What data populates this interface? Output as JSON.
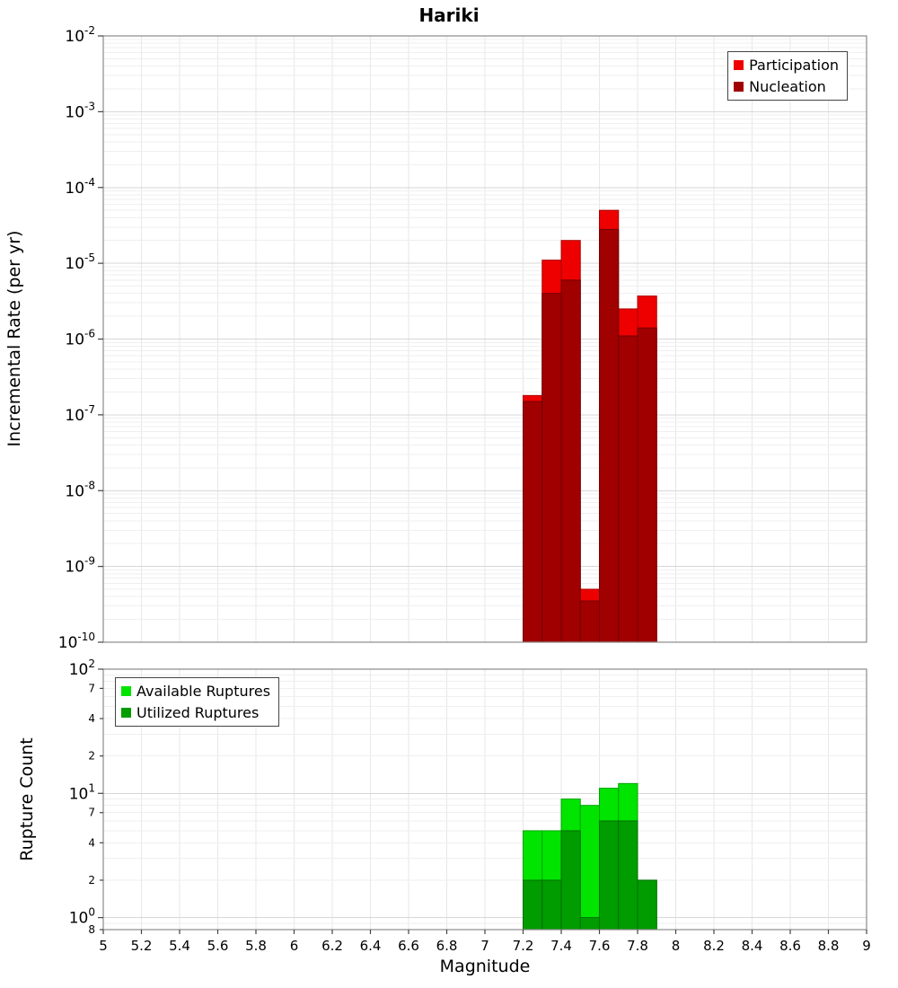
{
  "chart_data": [
    {
      "type": "bar",
      "title": "Hariki",
      "ylabel": "Incremental Rate (per yr)",
      "xlabel": "",
      "yscale": "log",
      "grid": true,
      "ylim": [
        1e-10,
        0.01
      ],
      "xlim": [
        5,
        9
      ],
      "bar_width": 0.1,
      "legend_position": "top-right",
      "x": [
        7.25,
        7.35,
        7.45,
        7.55,
        7.65,
        7.75,
        7.85
      ],
      "series": [
        {
          "name": "Participation",
          "color": "#ee0000",
          "values": [
            1.8e-07,
            1.1e-05,
            2e-05,
            5e-10,
            5e-05,
            2.5e-06,
            3.7e-06
          ]
        },
        {
          "name": "Nucleation",
          "color": "#a00000",
          "values": [
            1.5e-07,
            4e-06,
            6e-06,
            3.5e-10,
            2.8e-05,
            1.1e-06,
            1.4e-06
          ]
        }
      ],
      "yticks": [
        {
          "v": 0.01,
          "exp": "-2"
        },
        {
          "v": 0.001,
          "exp": "-3"
        },
        {
          "v": 0.0001,
          "exp": "-4"
        },
        {
          "v": 1e-05,
          "exp": "-5"
        },
        {
          "v": 1e-06,
          "exp": "-6"
        },
        {
          "v": 1e-07,
          "exp": "-7"
        },
        {
          "v": 1e-08,
          "exp": "-8"
        },
        {
          "v": 1e-09,
          "exp": "-9"
        },
        {
          "v": 1e-10,
          "exp": "-10"
        }
      ]
    },
    {
      "type": "bar",
      "title": "",
      "ylabel": "Rupture Count",
      "xlabel": "Magnitude",
      "yscale": "log",
      "grid": true,
      "ylim": [
        0.8,
        100
      ],
      "xlim": [
        5,
        9
      ],
      "bar_width": 0.1,
      "legend_position": "top-left",
      "x": [
        7.25,
        7.35,
        7.45,
        7.55,
        7.65,
        7.75,
        7.85
      ],
      "series": [
        {
          "name": "Available Ruptures",
          "color": "#00e400",
          "values": [
            5,
            5,
            9,
            8,
            11,
            12,
            2
          ]
        },
        {
          "name": "Utilized Ruptures",
          "color": "#009c00",
          "values": [
            2,
            2,
            5,
            1,
            6,
            6,
            2
          ]
        }
      ],
      "yticks": [
        {
          "v": 100,
          "exp": "2"
        },
        {
          "v": 70,
          "t": "7"
        },
        {
          "v": 40,
          "t": "4"
        },
        {
          "v": 20,
          "t": "2"
        },
        {
          "v": 10,
          "exp": "1"
        },
        {
          "v": 7,
          "t": "7"
        },
        {
          "v": 4,
          "t": "4"
        },
        {
          "v": 2,
          "t": "2"
        },
        {
          "v": 1,
          "exp": "0"
        },
        {
          "v": 0.8,
          "t": "8"
        }
      ],
      "xtick_labels": [
        "5",
        "5.2",
        "5.4",
        "5.6",
        "5.8",
        "6",
        "6.2",
        "6.4",
        "6.6",
        "6.8",
        "7",
        "7.2",
        "7.4",
        "7.6",
        "7.8",
        "8",
        "8.2",
        "8.4",
        "8.6",
        "8.8",
        "9"
      ]
    }
  ]
}
